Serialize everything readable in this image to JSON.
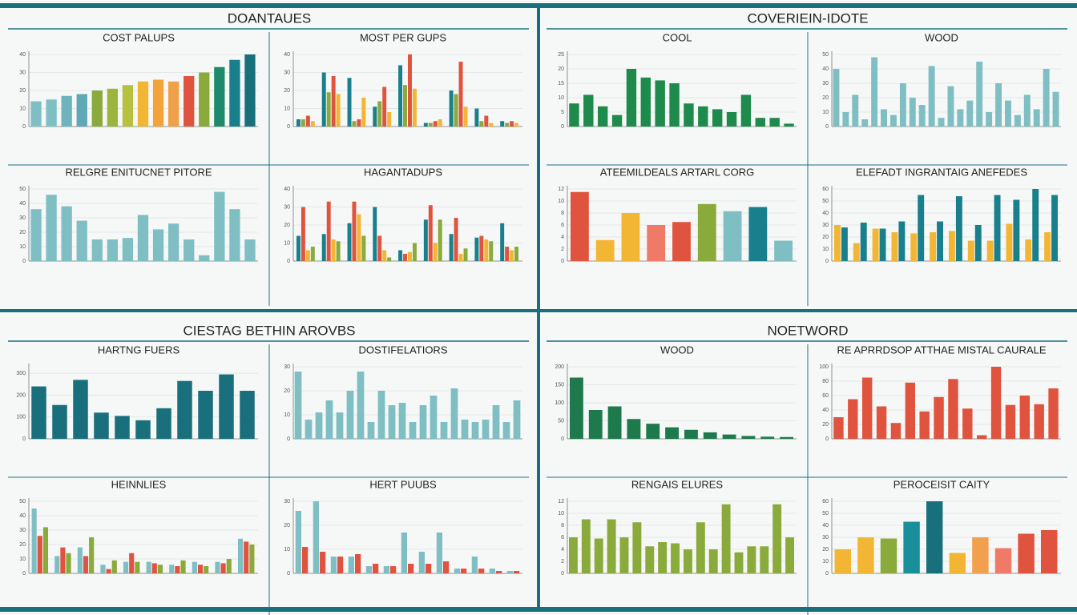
{
  "panels": [
    "DOANTAUES",
    "COVERIEIN-IDOTE",
    "CIESTAG BETHIN AROVBS",
    "NOETWORD"
  ],
  "chart_data": [
    {
      "type": "bar",
      "title": "COST PALUPS",
      "ylim": [
        0,
        40
      ],
      "yticks": [
        0,
        10,
        20,
        30,
        40
      ],
      "grid": true,
      "series": [
        {
          "colors": [
            "#7fbfc4",
            "#7fbfc4",
            "#6fb3bd",
            "#5fa8b5",
            "#8aaa3c",
            "#9bb53f",
            "#b6c23f",
            "#f2b634",
            "#f2a33a",
            "#f0a048",
            "#e0533f",
            "#8aaa3c",
            "#1e8a6c",
            "#1a7f8c",
            "#17707c"
          ],
          "values": [
            14,
            15,
            17,
            18,
            20,
            21,
            23,
            25,
            26,
            25,
            28,
            30,
            33,
            37,
            40
          ]
        }
      ]
    },
    {
      "type": "bar",
      "title": "MOST PER GUPS",
      "ylim": [
        0,
        40
      ],
      "yticks": [
        0,
        10,
        20,
        30,
        40
      ],
      "grid": true,
      "series": [
        {
          "color": "#1a7f8c",
          "values": [
            4,
            30,
            27,
            11,
            34,
            2,
            20,
            10,
            3
          ]
        },
        {
          "color": "#8aaa3c",
          "values": [
            4,
            19,
            3,
            14,
            23,
            2,
            18,
            3,
            2
          ]
        },
        {
          "color": "#e0533f",
          "values": [
            6,
            28,
            4,
            22,
            40,
            3,
            36,
            6,
            3
          ]
        },
        {
          "color": "#f2b634",
          "values": [
            3,
            18,
            16,
            8,
            21,
            4,
            11,
            2,
            2
          ]
        }
      ]
    },
    {
      "type": "bar",
      "title": "RELGRE ENITUCNET PITORE",
      "ylim": [
        0,
        50
      ],
      "yticks": [
        0,
        10,
        20,
        30,
        40,
        50
      ],
      "grid": true,
      "series": [
        {
          "color": "#7fbfc4",
          "values": [
            36,
            46,
            38,
            28,
            15,
            15,
            16,
            32,
            22,
            26,
            15,
            4,
            48,
            36,
            15
          ]
        }
      ]
    },
    {
      "type": "bar",
      "title": "HAGANTADUPS",
      "ylim": [
        0,
        40
      ],
      "yticks": [
        0,
        10,
        20,
        30,
        40
      ],
      "grid": true,
      "series": [
        {
          "color": "#1a7f8c",
          "values": [
            14,
            15,
            21,
            30,
            6,
            23,
            15,
            13,
            21
          ]
        },
        {
          "color": "#e0533f",
          "values": [
            30,
            33,
            33,
            14,
            4,
            31,
            24,
            14,
            8
          ]
        },
        {
          "color": "#f2b634",
          "values": [
            6,
            12,
            26,
            6,
            5,
            10,
            4,
            12,
            6
          ]
        },
        {
          "color": "#8aaa3c",
          "values": [
            8,
            11,
            14,
            2,
            10,
            23,
            7,
            11,
            8
          ]
        }
      ]
    },
    {
      "type": "bar",
      "title": "COOL",
      "ylim": [
        0,
        25
      ],
      "yticks": [
        0,
        5,
        10,
        15,
        20,
        25
      ],
      "grid": true,
      "series": [
        {
          "color": "#1e8a4c",
          "values": [
            8,
            11,
            7,
            4,
            20,
            17,
            16,
            15,
            8,
            7,
            6,
            5,
            11,
            3,
            3,
            1
          ]
        }
      ]
    },
    {
      "type": "bar",
      "title": "WOOD",
      "ylim": [
        0,
        50
      ],
      "yticks": [
        0,
        10,
        20,
        30,
        40,
        50
      ],
      "grid": true,
      "series": [
        {
          "color": "#7fbfc4",
          "values": [
            40,
            10,
            22,
            5,
            48,
            12,
            8,
            30,
            20,
            15,
            42,
            6,
            28,
            12,
            18,
            45,
            10,
            30,
            18,
            8,
            22,
            12,
            40,
            24
          ]
        }
      ]
    },
    {
      "type": "bar",
      "title": "ATEEMILDEALS ARTARL CORG",
      "ylim": [
        0,
        12
      ],
      "yticks": [
        0,
        2,
        4,
        6,
        8,
        10,
        12
      ],
      "grid": true,
      "series": [
        {
          "colors": [
            "#e0533f",
            "#f2b634",
            "#f2b634",
            "#f07a68",
            "#e0533f",
            "#8aaa3c",
            "#7fbfc4",
            "#17808c",
            "#7fbfc4"
          ],
          "values": [
            11.5,
            3.5,
            8,
            6,
            6.5,
            9.5,
            8.3,
            9,
            3.4
          ]
        }
      ]
    },
    {
      "type": "bar",
      "title": "ELEFADT INGRANTAIG ANEFEDES",
      "ylim": [
        0,
        60
      ],
      "yticks": [
        0,
        10,
        20,
        30,
        40,
        50,
        60
      ],
      "grid": true,
      "series": [
        {
          "color": "#f2b634",
          "values": [
            30,
            15,
            27,
            24,
            23,
            24,
            25,
            17,
            17,
            31,
            18,
            24
          ]
        },
        {
          "color": "#1a7f8c",
          "values": [
            28,
            32,
            27,
            33,
            55,
            33,
            54,
            30,
            55,
            51,
            60,
            55
          ]
        }
      ]
    },
    {
      "type": "bar",
      "title": "HARTNG FUERS",
      "ylim": [
        0,
        330
      ],
      "yticks": [
        0,
        100,
        200,
        300
      ],
      "grid": true,
      "series": [
        {
          "color": "#1a6f7c",
          "values": [
            240,
            155,
            270,
            120,
            105,
            85,
            140,
            265,
            220,
            295,
            220
          ]
        }
      ]
    },
    {
      "type": "bar",
      "title": "DOSTIFELATIORS",
      "ylim": [
        0,
        30
      ],
      "yticks": [
        0,
        10,
        20,
        30
      ],
      "grid": true,
      "series": [
        {
          "color": "#7fbfc4",
          "values": [
            28,
            8,
            11,
            16,
            11,
            20,
            28,
            7,
            20,
            14,
            15,
            7,
            14,
            18,
            7,
            21,
            8,
            7,
            8,
            14,
            7,
            16
          ]
        }
      ]
    },
    {
      "type": "bar",
      "title": "HEINNLIES",
      "ylim": [
        0,
        50
      ],
      "yticks": [
        0,
        10,
        20,
        30,
        40,
        50
      ],
      "grid": true,
      "series": [
        {
          "color": "#7fbfc4",
          "values": [
            45,
            12,
            18,
            6,
            8,
            8,
            6,
            8,
            8,
            24
          ]
        },
        {
          "color": "#e0533f",
          "values": [
            26,
            18,
            12,
            3,
            14,
            7,
            5,
            6,
            7,
            22
          ]
        },
        {
          "color": "#8aaa3c",
          "values": [
            32,
            14,
            25,
            9,
            8,
            6,
            9,
            5,
            10,
            20
          ]
        }
      ]
    },
    {
      "type": "bar",
      "title": "HERT PUUBS",
      "ylim": [
        0,
        30
      ],
      "yticks": [
        0,
        10,
        20,
        30
      ],
      "grid": true,
      "series": [
        {
          "color": "#7fbfc4",
          "values": [
            26,
            30,
            7,
            7,
            3,
            3,
            17,
            9,
            17,
            2,
            7,
            2,
            1
          ]
        },
        {
          "color": "#e0533f",
          "values": [
            11,
            9,
            7,
            8,
            4,
            3,
            4,
            4,
            5,
            2,
            2,
            1,
            1
          ]
        }
      ]
    },
    {
      "type": "bar",
      "title": "WOOD",
      "ylim": [
        0,
        200
      ],
      "yticks": [
        0,
        50,
        100,
        150,
        200
      ],
      "grid": true,
      "series": [
        {
          "color": "#1e7a4c",
          "values": [
            170,
            80,
            90,
            55,
            42,
            32,
            25,
            18,
            12,
            8,
            6,
            5
          ]
        }
      ]
    },
    {
      "type": "bar",
      "title": "RE APRRDSOP ATTHAE MISTAL CAURALE",
      "ylim": [
        0,
        100
      ],
      "yticks": [
        0,
        20,
        40,
        60,
        80,
        100
      ],
      "grid": true,
      "series": [
        {
          "color": "#e0533f",
          "values": [
            30,
            55,
            85,
            45,
            22,
            78,
            38,
            58,
            83,
            42,
            5,
            100,
            47,
            60,
            48,
            70
          ]
        }
      ]
    },
    {
      "type": "bar",
      "title": "RENGAIS ELURES",
      "ylim": [
        0,
        12
      ],
      "yticks": [
        0,
        2,
        4,
        6,
        8,
        10,
        12
      ],
      "grid": true,
      "series": [
        {
          "color": "#8aaa3c",
          "values": [
            6,
            9,
            5.8,
            9,
            6,
            8.5,
            4.5,
            5.2,
            5,
            4,
            8.5,
            4,
            11.5,
            3.5,
            4.5,
            4.5,
            11.5,
            6
          ]
        }
      ]
    },
    {
      "type": "bar",
      "title": "PEROCEISIT CAITY",
      "ylim": [
        0,
        60
      ],
      "yticks": [
        0,
        10,
        20,
        30,
        40,
        50,
        60
      ],
      "grid": true,
      "series": [
        {
          "colors": [
            "#f2b634",
            "#f2b634",
            "#8aaa3c",
            "#1a8f9c",
            "#17707c",
            "#f2b634",
            "#f2a050",
            "#f07a68",
            "#e0533f",
            "#e0533f"
          ],
          "values": [
            20,
            30,
            29,
            43,
            60,
            17,
            30,
            21,
            33,
            36
          ]
        }
      ]
    }
  ]
}
